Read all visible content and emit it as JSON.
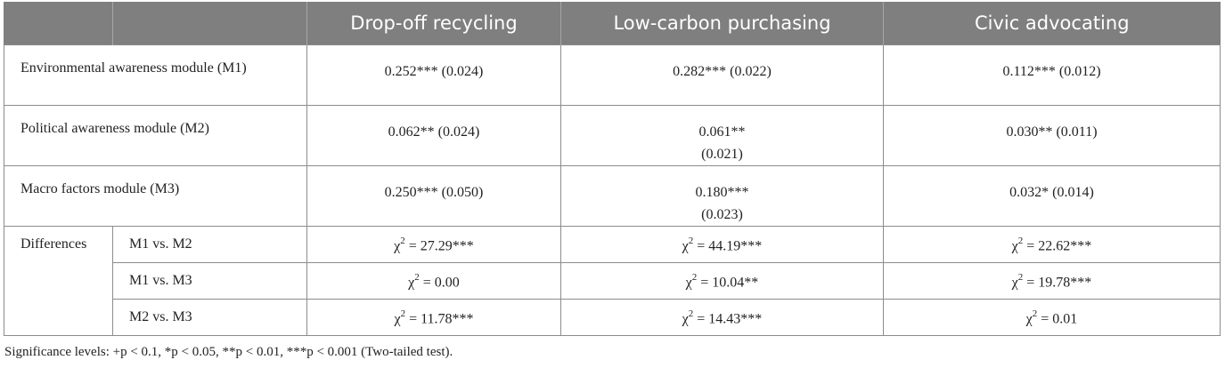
{
  "header": {
    "col1": "Drop-off recycling",
    "col2": "Low-carbon purchasing",
    "col3": "Civic advocating"
  },
  "rows": [
    {
      "label": "Environmental awareness module (M1)",
      "v1": "0.252*** (0.024)",
      "v2": "0.282*** (0.022)",
      "v3": "0.112*** (0.012)"
    },
    {
      "label": "Political awareness module (M2)",
      "v1": "0.062** (0.024)",
      "v2": "0.061** (0.021)",
      "v3": "0.030** (0.011)"
    },
    {
      "label": "Macro factors module (M3)",
      "v1": "0.250*** (0.050)",
      "v2": "0.180*** (0.023)",
      "v3": "0.032* (0.014)"
    }
  ],
  "differences": {
    "label": "Differences",
    "chi_symbol": "χ",
    "chi_exp": "2",
    "rows": [
      {
        "label": "M1 vs. M2",
        "v1": " = 27.29***",
        "v2": " = 44.19***",
        "v3": " = 22.62***"
      },
      {
        "label": "M1 vs. M3",
        "v1": " = 0.00",
        "v2": " = 10.04**",
        "v3": " = 19.78***"
      },
      {
        "label": "M2 vs. M3",
        "v1": " = 11.78***",
        "v2": " = 14.43***",
        "v3": " = 0.01"
      }
    ]
  },
  "note": "Significance levels: +p < 0.1, *p < 0.05, **p < 0.01, ***p < 0.001 (Two-tailed test)."
}
